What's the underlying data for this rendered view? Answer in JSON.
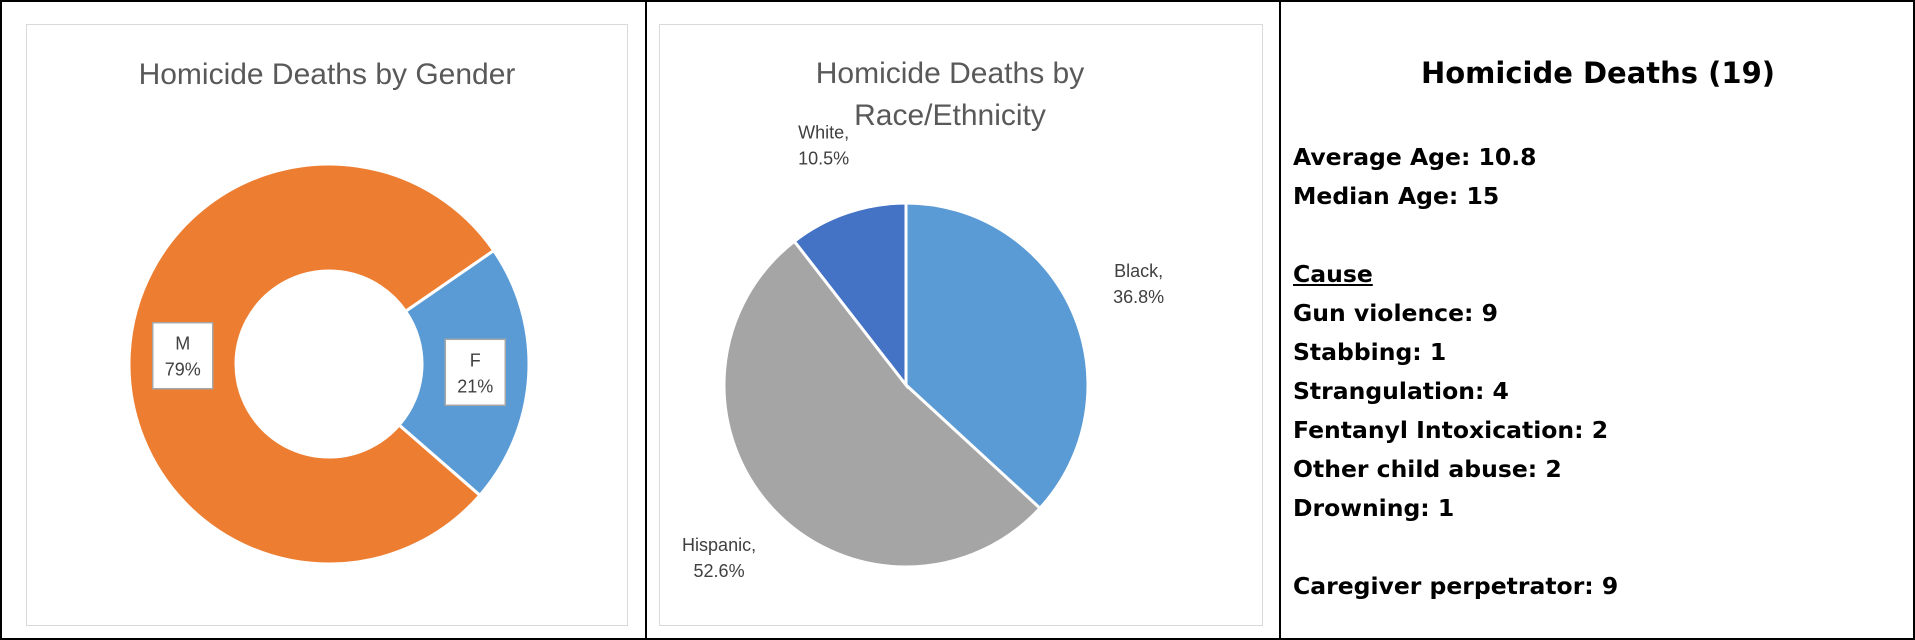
{
  "chart_data": [
    {
      "type": "pie",
      "subtype": "donut",
      "title": "Homicide Deaths by Gender",
      "categories": [
        "M",
        "F"
      ],
      "values": [
        79,
        21
      ],
      "data_labels": [
        "79%",
        "21%"
      ],
      "colors": [
        "#ED7D31",
        "#5B9BD5"
      ]
    },
    {
      "type": "pie",
      "title_lines": [
        "Homicide Deaths by",
        "Race/Ethnicity"
      ],
      "categories": [
        "Black",
        "Hispanic",
        "White"
      ],
      "values": [
        36.8,
        52.6,
        10.5
      ],
      "category_labels": [
        "Black,",
        "Hispanic,",
        "White,"
      ],
      "data_labels": [
        "36.8%",
        "52.6%",
        "10.5%"
      ],
      "colors": [
        "#5B9BD5",
        "#A5A5A5",
        "#4472C4"
      ]
    }
  ],
  "summary": {
    "title": "Homicide Deaths (19)",
    "average_age": "Average Age: 10.8",
    "median_age": "Median Age: 15",
    "cause_heading": "Cause",
    "causes": [
      "Gun violence: 9",
      "Stabbing: 1",
      "Strangulation: 4",
      "Fentanyl Intoxication: 2",
      "Other child abuse: 2",
      "Drowning: 1"
    ],
    "caregiver": "Caregiver perpetrator: 9"
  }
}
